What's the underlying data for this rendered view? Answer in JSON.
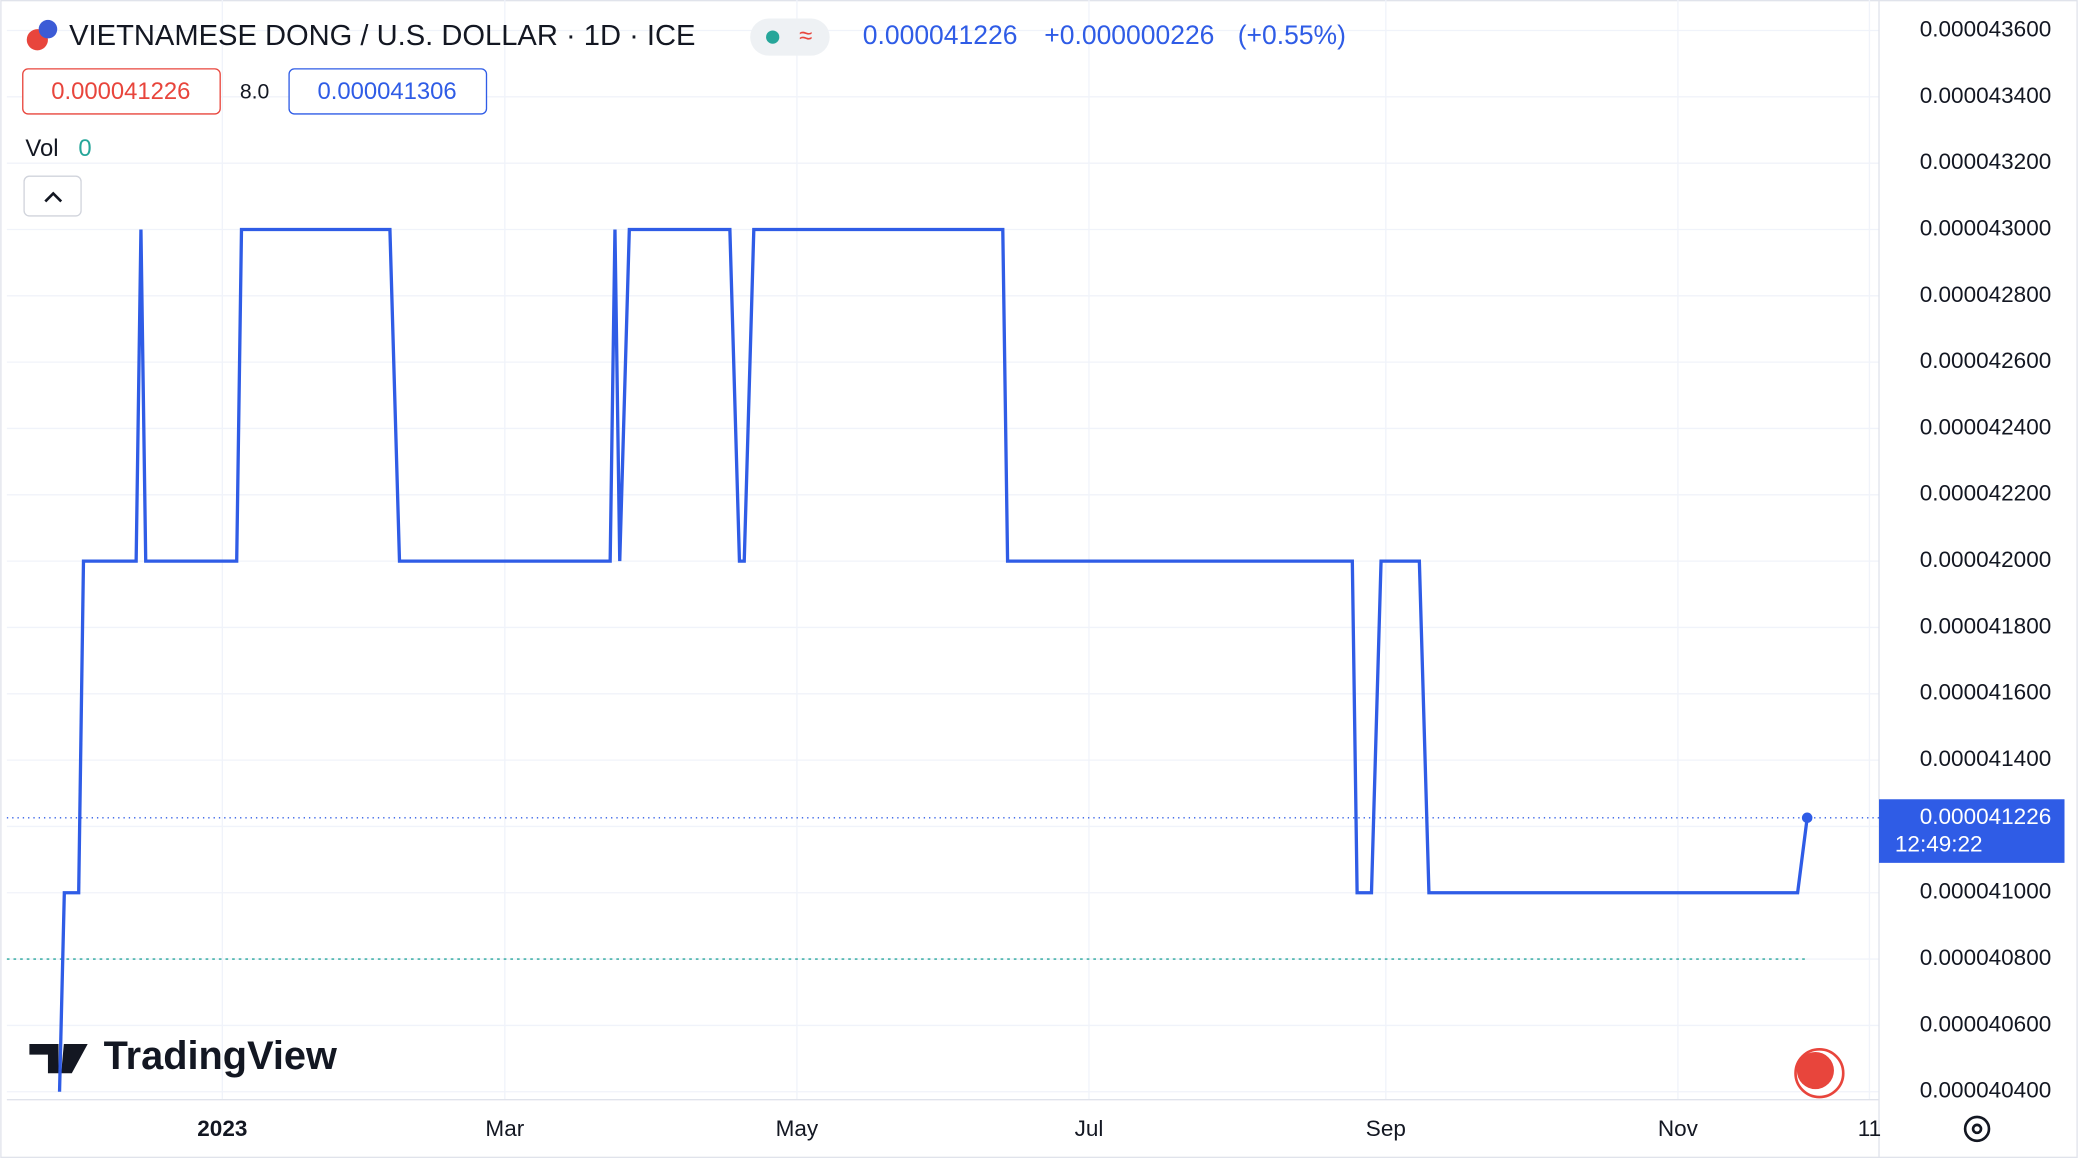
{
  "header": {
    "title": "VIETNAMESE DONG / U.S. DOLLAR · 1D · ICE",
    "last": "0.000041226",
    "change": "+0.000000226",
    "change_pct": "(+0.55%)",
    "sell": "0.000041226",
    "spread": "8.0",
    "buy": "0.000041306",
    "volume_label": "Vol",
    "volume": "0",
    "logo": "TradingView"
  },
  "chart_data": {
    "type": "line",
    "x": [
      -34,
      -33,
      -30,
      -29,
      -18,
      -17,
      -16,
      3,
      4,
      35,
      37,
      81,
      82,
      83,
      85,
      106,
      108,
      109,
      111,
      163,
      164,
      236,
      237,
      240,
      242,
      250,
      252,
      329,
      331
    ],
    "series": [
      {
        "color": "#2f5ce6",
        "values": [
          4.04e-05,
          4.1e-05,
          4.1e-05,
          4.2e-05,
          4.2e-05,
          4.3e-05,
          4.2e-05,
          4.2e-05,
          4.3e-05,
          4.3e-05,
          4.2e-05,
          4.2e-05,
          4.3e-05,
          4.2e-05,
          4.3e-05,
          4.3e-05,
          4.2e-05,
          4.2e-05,
          4.3e-05,
          4.3e-05,
          4.2e-05,
          4.2e-05,
          4.1e-05,
          4.1e-05,
          4.2e-05,
          4.2e-05,
          4.1e-05,
          4.1e-05,
          4.1226e-05
        ]
      }
    ],
    "xlim": [
      -45,
      346
    ],
    "xticks": [
      {
        "value": 0,
        "label": "2023"
      },
      {
        "value": 59,
        "label": "Mar"
      },
      {
        "value": 120,
        "label": "May"
      },
      {
        "value": 181,
        "label": "Jul"
      },
      {
        "value": 243,
        "label": "Sep"
      },
      {
        "value": 304,
        "label": "Nov"
      },
      {
        "value": 344,
        "label": "11"
      }
    ],
    "ylim": [
      4.0376e-05,
      4.3672e-05
    ],
    "yticks": [
      {
        "value": 4.04e-05,
        "label": "0.000040400"
      },
      {
        "value": 4.06e-05,
        "label": "0.000040600"
      },
      {
        "value": 4.08e-05,
        "label": "0.000040800"
      },
      {
        "value": 4.1e-05,
        "label": "0.000041000"
      },
      {
        "value": 4.12e-05,
        "label": "0.000041200"
      },
      {
        "value": 4.14e-05,
        "label": "0.000041400"
      },
      {
        "value": 4.16e-05,
        "label": "0.000041600"
      },
      {
        "value": 4.18e-05,
        "label": "0.000041800"
      },
      {
        "value": 4.2e-05,
        "label": "0.000042000"
      },
      {
        "value": 4.22e-05,
        "label": "0.000042200"
      },
      {
        "value": 4.24e-05,
        "label": "0.000042400"
      },
      {
        "value": 4.26e-05,
        "label": "0.000042600"
      },
      {
        "value": 4.28e-05,
        "label": "0.000042800"
      },
      {
        "value": 4.3e-05,
        "label": "0.000043000"
      },
      {
        "value": 4.32e-05,
        "label": "0.000043200"
      },
      {
        "value": 4.34e-05,
        "label": "0.000043400"
      },
      {
        "value": 4.36e-05,
        "label": "0.000043600"
      }
    ],
    "grid": true,
    "price_line": {
      "value": 4.1226e-05,
      "label": "0.000041226",
      "countdown": "12:49:22"
    },
    "ref_line": 4.08e-05
  }
}
